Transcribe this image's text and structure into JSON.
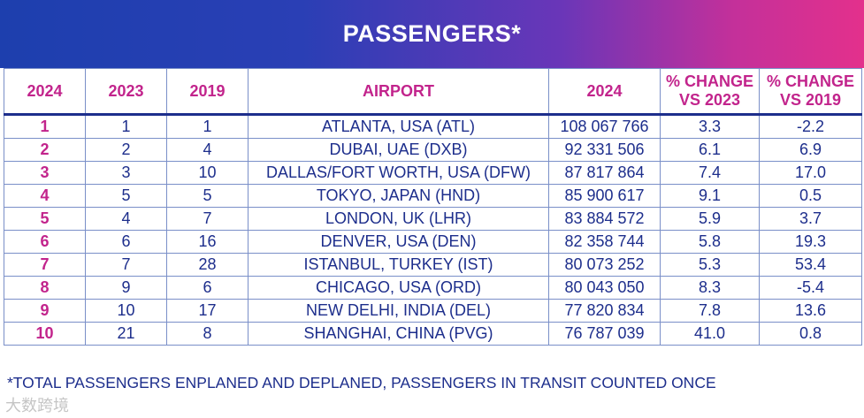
{
  "title": "PASSENGERS*",
  "columns": [
    "2024",
    "2023",
    "2019",
    "AIRPORT",
    "2024",
    "% CHANGE VS 2023",
    "% CHANGE VS 2019"
  ],
  "rows": [
    {
      "r2024": "1",
      "r2023": "1",
      "r2019": "1",
      "airport": "ATLANTA, USA (ATL)",
      "passengers": "108 067 766",
      "chg2023": "3.3",
      "chg2019": "-2.2"
    },
    {
      "r2024": "2",
      "r2023": "2",
      "r2019": "4",
      "airport": "DUBAI, UAE (DXB)",
      "passengers": "92 331 506",
      "chg2023": "6.1",
      "chg2019": "6.9"
    },
    {
      "r2024": "3",
      "r2023": "3",
      "r2019": "10",
      "airport": "DALLAS/FORT WORTH, USA (DFW)",
      "passengers": "87 817 864",
      "chg2023": "7.4",
      "chg2019": "17.0"
    },
    {
      "r2024": "4",
      "r2023": "5",
      "r2019": "5",
      "airport": "TOKYO, JAPAN (HND)",
      "passengers": "85 900 617",
      "chg2023": "9.1",
      "chg2019": "0.5"
    },
    {
      "r2024": "5",
      "r2023": "4",
      "r2019": "7",
      "airport": "LONDON, UK (LHR)",
      "passengers": "83 884 572",
      "chg2023": "5.9",
      "chg2019": "3.7"
    },
    {
      "r2024": "6",
      "r2023": "6",
      "r2019": "16",
      "airport": "DENVER, USA (DEN)",
      "passengers": "82 358 744",
      "chg2023": "5.8",
      "chg2019": "19.3"
    },
    {
      "r2024": "7",
      "r2023": "7",
      "r2019": "28",
      "airport": "ISTANBUL, TURKEY (IST)",
      "passengers": "80 073 252",
      "chg2023": "5.3",
      "chg2019": "53.4"
    },
    {
      "r2024": "8",
      "r2023": "9",
      "r2019": "6",
      "airport": "CHICAGO, USA (ORD)",
      "passengers": "80 043 050",
      "chg2023": "8.3",
      "chg2019": "-5.4"
    },
    {
      "r2024": "9",
      "r2023": "10",
      "r2019": "17",
      "airport": "NEW DELHI, INDIA (DEL)",
      "passengers": "77 820 834",
      "chg2023": "7.8",
      "chg2019": "13.6"
    },
    {
      "r2024": "10",
      "r2023": "21",
      "r2019": "8",
      "airport": "SHANGHAI, CHINA (PVG)",
      "passengers": "76 787 039",
      "chg2023": "41.0",
      "chg2019": "0.8"
    }
  ],
  "footnote": "*TOTAL PASSENGERS ENPLANED AND DEPLANED, PASSENGERS IN TRANSIT COUNTED ONCE",
  "watermark": "大数跨境",
  "colors": {
    "rank": "#c2248c",
    "text": "#1d2e8c",
    "banner_start": "#1d3fae",
    "banner_end": "#e3308c"
  }
}
